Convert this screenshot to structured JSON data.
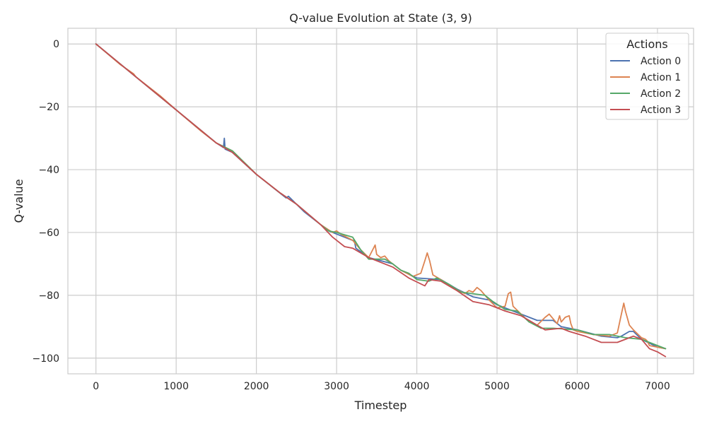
{
  "chart_data": {
    "type": "line",
    "title": "Q-value Evolution at State (3, 9)",
    "xlabel": "Timestep",
    "ylabel": "Q-value",
    "xlim": [
      -350,
      7450
    ],
    "ylim": [
      -105,
      5
    ],
    "xticks": [
      0,
      1000,
      2000,
      3000,
      4000,
      5000,
      6000,
      7000
    ],
    "xtick_labels": [
      "0",
      "1000",
      "2000",
      "3000",
      "4000",
      "5000",
      "6000",
      "7000"
    ],
    "yticks": [
      0,
      -20,
      -40,
      -60,
      -80,
      -100
    ],
    "ytick_labels": [
      "0",
      "−20",
      "−40",
      "−60",
      "−80",
      "−100"
    ],
    "grid": true,
    "legend": {
      "title": "Actions",
      "placement": "top-right"
    },
    "series": [
      {
        "name": "Action 0",
        "color": "#4c72b0",
        "points": [
          [
            0,
            0
          ],
          [
            500,
            -10.5
          ],
          [
            1000,
            -21
          ],
          [
            1500,
            -31.5
          ],
          [
            1590,
            -33
          ],
          [
            1600,
            -30
          ],
          [
            1610,
            -33.5
          ],
          [
            1700,
            -34.5
          ],
          [
            2000,
            -41.5
          ],
          [
            2370,
            -49
          ],
          [
            2400,
            -48.5
          ],
          [
            2600,
            -53.5
          ],
          [
            2900,
            -59.5
          ],
          [
            3000,
            -60.5
          ],
          [
            3200,
            -62.5
          ],
          [
            3220,
            -62.5
          ],
          [
            3240,
            -65
          ],
          [
            3400,
            -68
          ],
          [
            3700,
            -70
          ],
          [
            3800,
            -72
          ],
          [
            4000,
            -74.5
          ],
          [
            4300,
            -75
          ],
          [
            4500,
            -78
          ],
          [
            4700,
            -80.5
          ],
          [
            4900,
            -81.5
          ],
          [
            5000,
            -83
          ],
          [
            5200,
            -85
          ],
          [
            5500,
            -88
          ],
          [
            5700,
            -88
          ],
          [
            5800,
            -90
          ],
          [
            6000,
            -91
          ],
          [
            6300,
            -93
          ],
          [
            6500,
            -93.5
          ],
          [
            6550,
            -93
          ],
          [
            6650,
            -91.5
          ],
          [
            6700,
            -91.5
          ],
          [
            6800,
            -94
          ],
          [
            7000,
            -96.5
          ],
          [
            7100,
            -97
          ]
        ]
      },
      {
        "name": "Action 1",
        "color": "#dd8452",
        "points": [
          [
            0,
            0
          ],
          [
            300,
            -6.5
          ],
          [
            470,
            -9.5
          ],
          [
            500,
            -10.5
          ],
          [
            800,
            -16.5
          ],
          [
            1000,
            -21
          ],
          [
            1300,
            -27.5
          ],
          [
            1500,
            -31.5
          ],
          [
            1700,
            -34
          ],
          [
            2000,
            -41.5
          ],
          [
            2300,
            -47.5
          ],
          [
            2500,
            -51
          ],
          [
            2800,
            -57.5
          ],
          [
            2950,
            -60
          ],
          [
            3000,
            -59.5
          ],
          [
            3050,
            -60.5
          ],
          [
            3200,
            -62.5
          ],
          [
            3300,
            -65.5
          ],
          [
            3400,
            -68
          ],
          [
            3450,
            -65.5
          ],
          [
            3480,
            -64
          ],
          [
            3500,
            -67
          ],
          [
            3550,
            -68
          ],
          [
            3600,
            -67.5
          ],
          [
            3650,
            -69
          ],
          [
            3700,
            -70
          ],
          [
            3800,
            -72
          ],
          [
            3950,
            -74
          ],
          [
            4050,
            -73
          ],
          [
            4100,
            -69
          ],
          [
            4130,
            -66.5
          ],
          [
            4160,
            -69
          ],
          [
            4200,
            -73.5
          ],
          [
            4300,
            -75
          ],
          [
            4450,
            -77.5
          ],
          [
            4600,
            -79.5
          ],
          [
            4650,
            -78.5
          ],
          [
            4700,
            -79
          ],
          [
            4750,
            -77.5
          ],
          [
            4800,
            -78.5
          ],
          [
            4900,
            -81.5
          ],
          [
            5000,
            -84
          ],
          [
            5100,
            -83.5
          ],
          [
            5140,
            -79.5
          ],
          [
            5170,
            -79
          ],
          [
            5200,
            -83.5
          ],
          [
            5300,
            -86
          ],
          [
            5400,
            -88.5
          ],
          [
            5500,
            -89.5
          ],
          [
            5600,
            -87
          ],
          [
            5650,
            -86
          ],
          [
            5700,
            -87.5
          ],
          [
            5750,
            -89
          ],
          [
            5780,
            -86.5
          ],
          [
            5800,
            -88.5
          ],
          [
            5850,
            -87
          ],
          [
            5900,
            -86.5
          ],
          [
            5920,
            -89
          ],
          [
            5950,
            -91
          ],
          [
            6000,
            -91.5
          ],
          [
            6200,
            -92.5
          ],
          [
            6400,
            -93
          ],
          [
            6500,
            -92
          ],
          [
            6550,
            -86
          ],
          [
            6580,
            -82.5
          ],
          [
            6600,
            -85
          ],
          [
            6650,
            -89.5
          ],
          [
            6700,
            -91
          ],
          [
            6800,
            -93.5
          ],
          [
            6850,
            -94
          ],
          [
            6870,
            -94.5
          ],
          [
            6900,
            -96
          ],
          [
            7000,
            -96.5
          ],
          [
            7100,
            -97
          ]
        ]
      },
      {
        "name": "Action 2",
        "color": "#55a868",
        "points": [
          [
            0,
            0
          ],
          [
            500,
            -10.5
          ],
          [
            1000,
            -21
          ],
          [
            1500,
            -31.5
          ],
          [
            1700,
            -34
          ],
          [
            2000,
            -41.5
          ],
          [
            2300,
            -47.5
          ],
          [
            2500,
            -51
          ],
          [
            2800,
            -57.5
          ],
          [
            2900,
            -59.5
          ],
          [
            3000,
            -60
          ],
          [
            3200,
            -61.5
          ],
          [
            3300,
            -65.5
          ],
          [
            3400,
            -68.5
          ],
          [
            3600,
            -68.5
          ],
          [
            3700,
            -70
          ],
          [
            3800,
            -72
          ],
          [
            3900,
            -73
          ],
          [
            4000,
            -75
          ],
          [
            4150,
            -75.5
          ],
          [
            4250,
            -74.5
          ],
          [
            4400,
            -76.5
          ],
          [
            4550,
            -79
          ],
          [
            4700,
            -79.5
          ],
          [
            4850,
            -80
          ],
          [
            4950,
            -82
          ],
          [
            5100,
            -84.5
          ],
          [
            5250,
            -85
          ],
          [
            5400,
            -88.5
          ],
          [
            5550,
            -90.5
          ],
          [
            5700,
            -90.5
          ],
          [
            6000,
            -91
          ],
          [
            6200,
            -92.5
          ],
          [
            6400,
            -92.5
          ],
          [
            6600,
            -93.5
          ],
          [
            6800,
            -94
          ],
          [
            7000,
            -96
          ],
          [
            7100,
            -97
          ]
        ]
      },
      {
        "name": "Action 3",
        "color": "#c44e52",
        "points": [
          [
            0,
            0
          ],
          [
            500,
            -10.5
          ],
          [
            1000,
            -21
          ],
          [
            1500,
            -31.5
          ],
          [
            1700,
            -34.5
          ],
          [
            2000,
            -41.5
          ],
          [
            2300,
            -47.5
          ],
          [
            2500,
            -51
          ],
          [
            2800,
            -57.5
          ],
          [
            2950,
            -61.5
          ],
          [
            3000,
            -62.5
          ],
          [
            3100,
            -64.5
          ],
          [
            3200,
            -65
          ],
          [
            3400,
            -68
          ],
          [
            3700,
            -71
          ],
          [
            3900,
            -74.5
          ],
          [
            4100,
            -77
          ],
          [
            4150,
            -75
          ],
          [
            4300,
            -75.5
          ],
          [
            4500,
            -78.5
          ],
          [
            4700,
            -82
          ],
          [
            4900,
            -83
          ],
          [
            5100,
            -85
          ],
          [
            5300,
            -86.5
          ],
          [
            5500,
            -89.5
          ],
          [
            5600,
            -91
          ],
          [
            5800,
            -90.5
          ],
          [
            5900,
            -91.5
          ],
          [
            6100,
            -93
          ],
          [
            6300,
            -95
          ],
          [
            6500,
            -95
          ],
          [
            6600,
            -94
          ],
          [
            6700,
            -93
          ],
          [
            6800,
            -94
          ],
          [
            6900,
            -97
          ],
          [
            7000,
            -98
          ],
          [
            7100,
            -99.5
          ]
        ]
      }
    ]
  }
}
